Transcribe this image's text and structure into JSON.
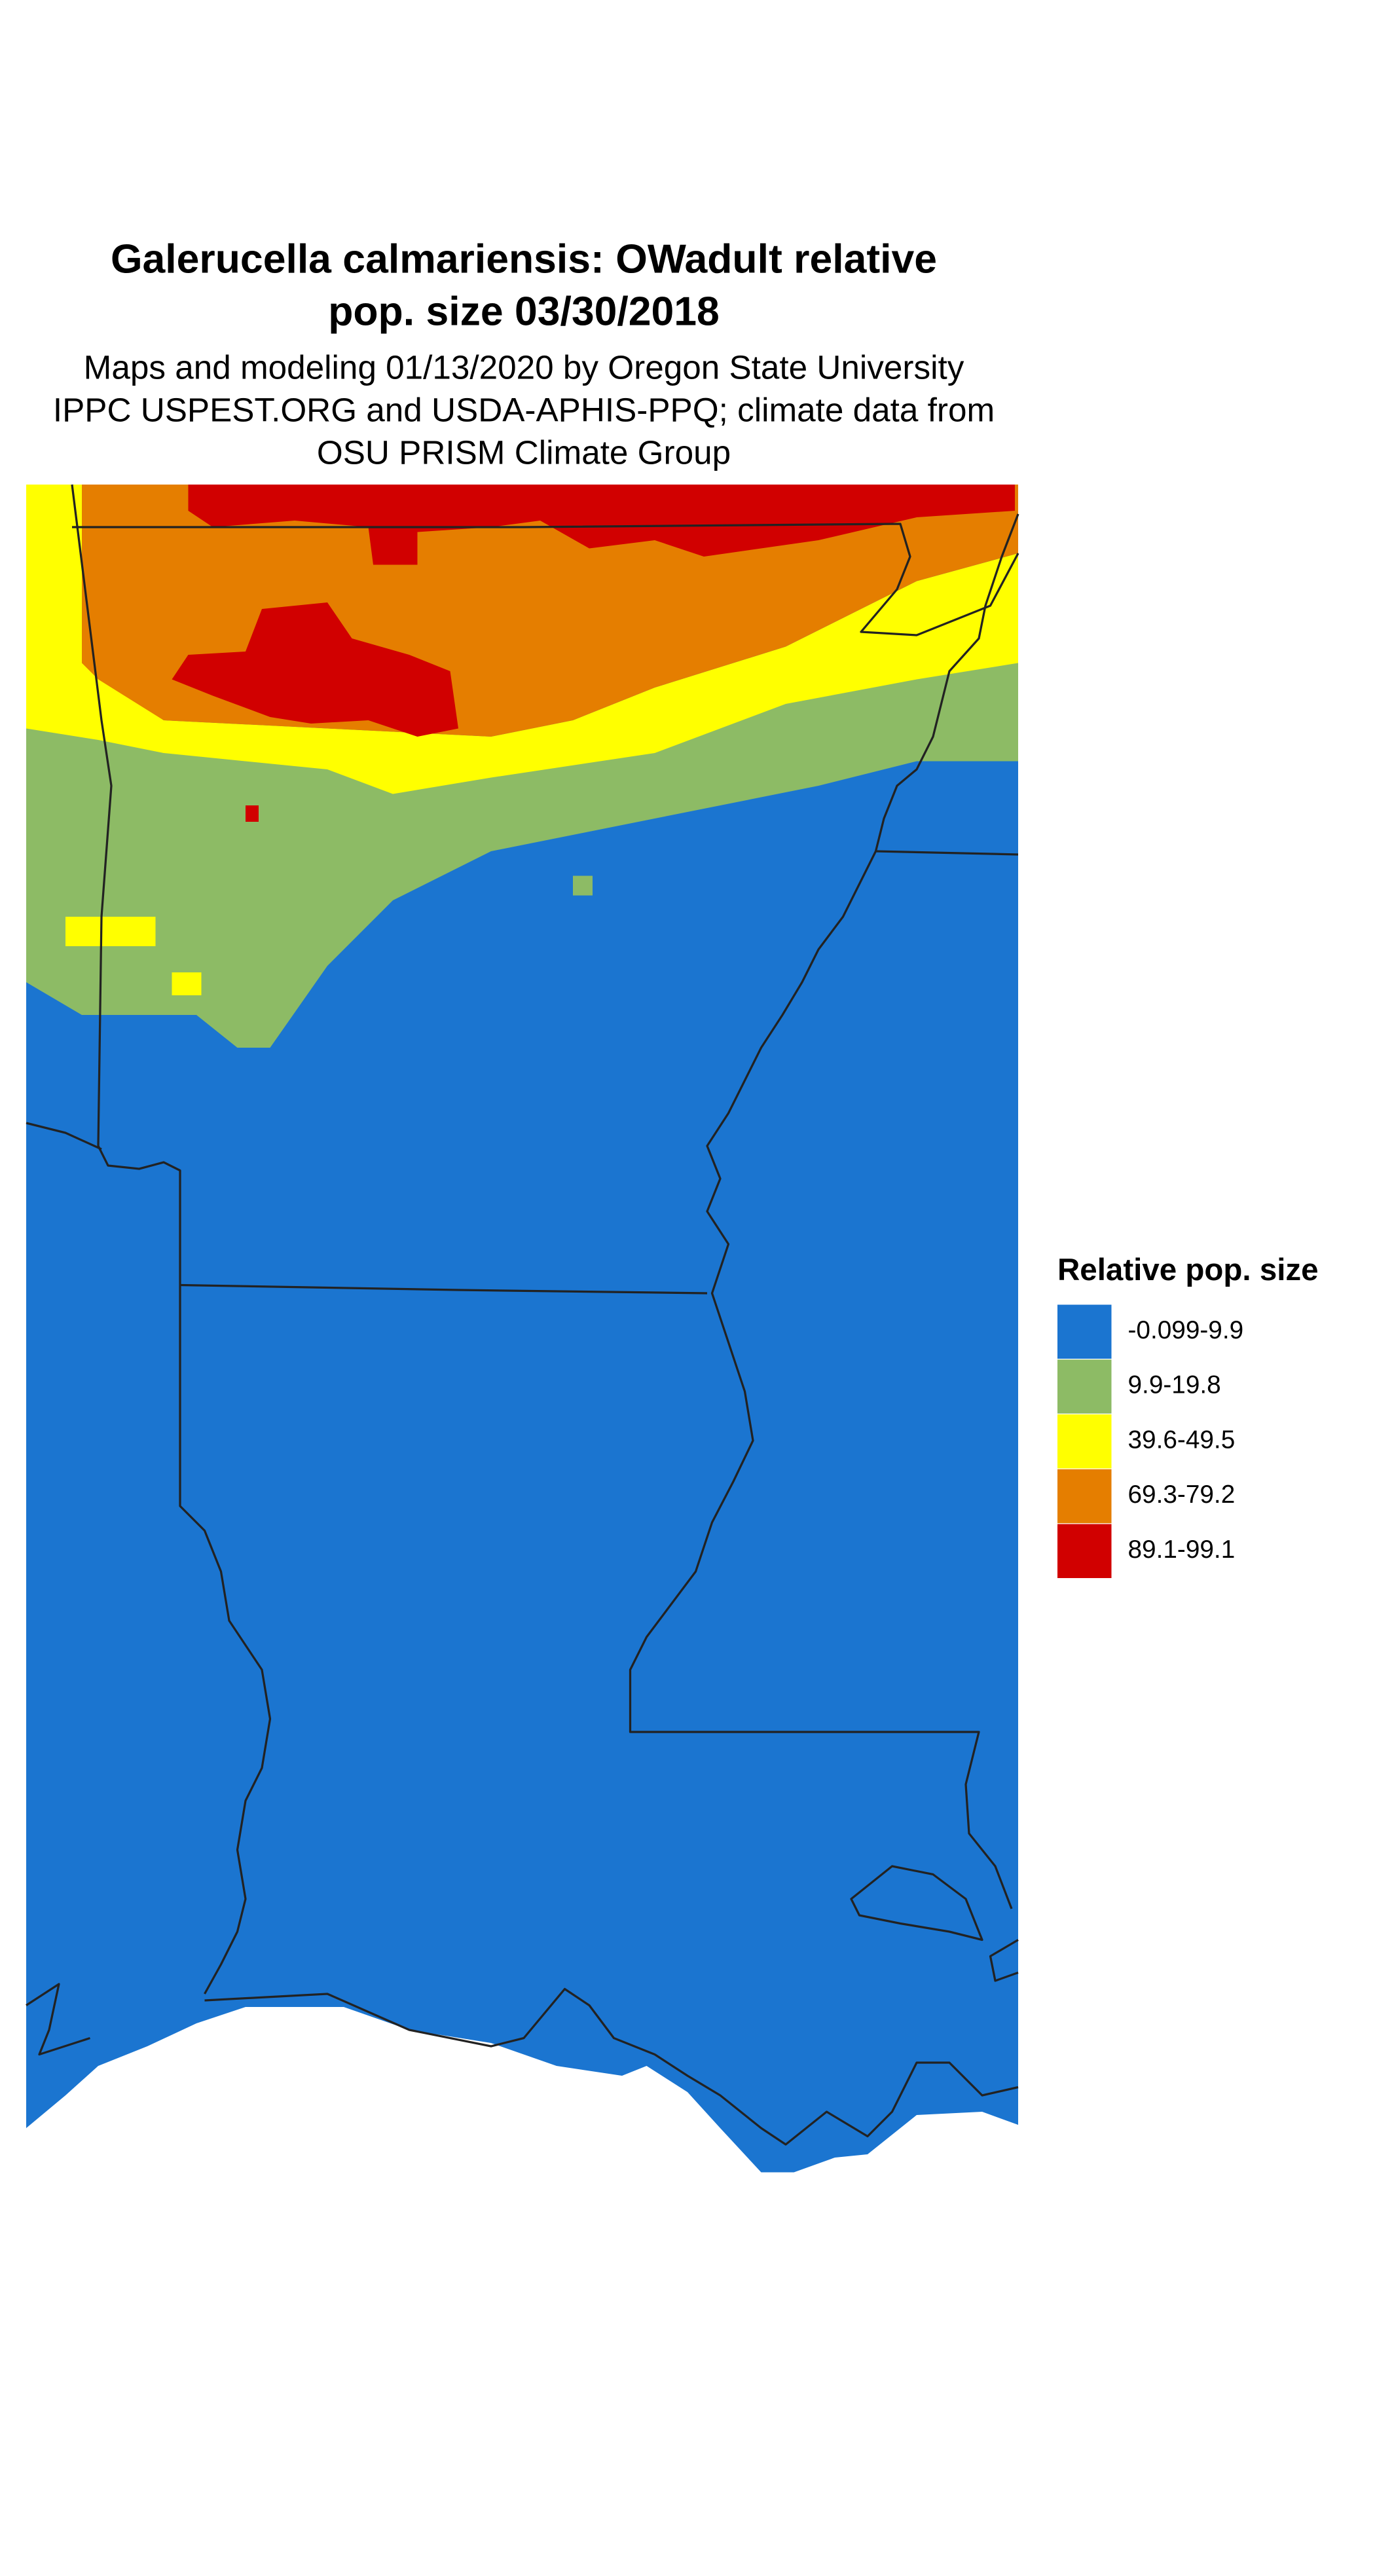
{
  "title": [
    "Galerucella calmariensis: OWadult relative",
    "pop. size 03/30/2018"
  ],
  "subtitle": [
    "Maps and modeling 01/13/2020 by Oregon State University",
    "IPPC USPEST.ORG and USDA-APHIS-PPQ; climate data from",
    "OSU PRISM Climate Group"
  ],
  "legend": {
    "title": "Relative pop. size",
    "items": [
      {
        "label": "-0.099-9.9",
        "color": "#1b75d0"
      },
      {
        "label": "9.9-19.8",
        "color": "#8dbb65"
      },
      {
        "label": "39.6-49.5",
        "color": "#ffff00"
      },
      {
        "label": "69.3-79.2",
        "color": "#e57e00"
      },
      {
        "label": "89.1-99.1",
        "color": "#d10000"
      }
    ]
  }
}
